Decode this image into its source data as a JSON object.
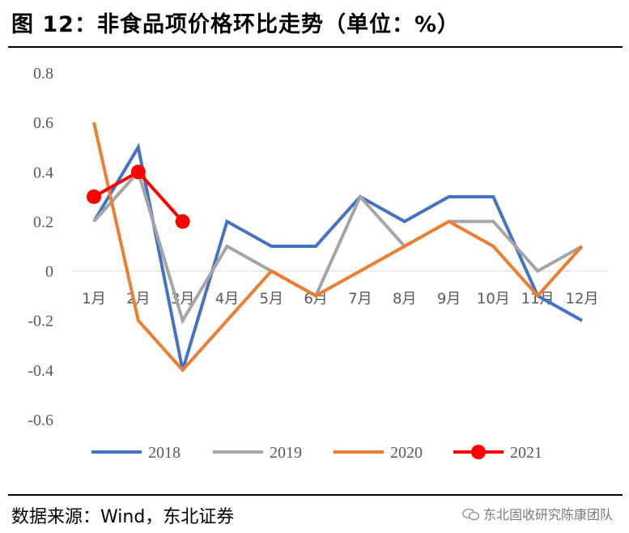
{
  "header": {
    "title": "图  12：非食品项价格环比走势（单位：%）"
  },
  "footer": {
    "source": "数据来源：Wind，东北证券",
    "watermark": "东北固收研究陈康团队"
  },
  "colors": {
    "2018": "#4472C4",
    "2019": "#A5A5A5",
    "2020": "#ED7D31",
    "2021": "#FF0000"
  },
  "chart_data": {
    "type": "line",
    "title": "非食品项价格环比走势（单位：%）",
    "categories": [
      "1月",
      "2月",
      "3月",
      "4月",
      "5月",
      "6月",
      "7月",
      "8月",
      "9月",
      "10月",
      "11月",
      "12月"
    ],
    "ylim": [
      -0.6,
      0.8
    ],
    "yticks": [
      "0.8",
      "0.6",
      "0.4",
      "0.2",
      "0",
      "-0.2",
      "-0.4",
      "-0.6"
    ],
    "ytick_values": [
      0.8,
      0.6,
      0.4,
      0.2,
      0,
      -0.2,
      -0.4,
      -0.6
    ],
    "grid": false,
    "legend": "bottom",
    "series": [
      {
        "name": "2018",
        "color": "#4472C4",
        "markers": false,
        "values": [
          0.2,
          0.5,
          -0.4,
          0.2,
          0.1,
          0.1,
          0.3,
          0.2,
          0.3,
          0.3,
          -0.1,
          -0.2
        ]
      },
      {
        "name": "2019",
        "color": "#A5A5A5",
        "markers": false,
        "values": [
          0.2,
          0.4,
          -0.2,
          0.1,
          0.0,
          -0.1,
          0.3,
          0.1,
          0.2,
          0.2,
          0.0,
          0.1
        ]
      },
      {
        "name": "2020",
        "color": "#ED7D31",
        "markers": false,
        "values": [
          0.6,
          -0.2,
          -0.4,
          -0.2,
          0.0,
          -0.1,
          0.0,
          0.1,
          0.2,
          0.1,
          -0.1,
          0.1
        ]
      },
      {
        "name": "2021",
        "color": "#FF0000",
        "markers": true,
        "values": [
          0.3,
          0.4,
          0.2,
          null,
          null,
          null,
          null,
          null,
          null,
          null,
          null,
          null
        ]
      }
    ]
  }
}
